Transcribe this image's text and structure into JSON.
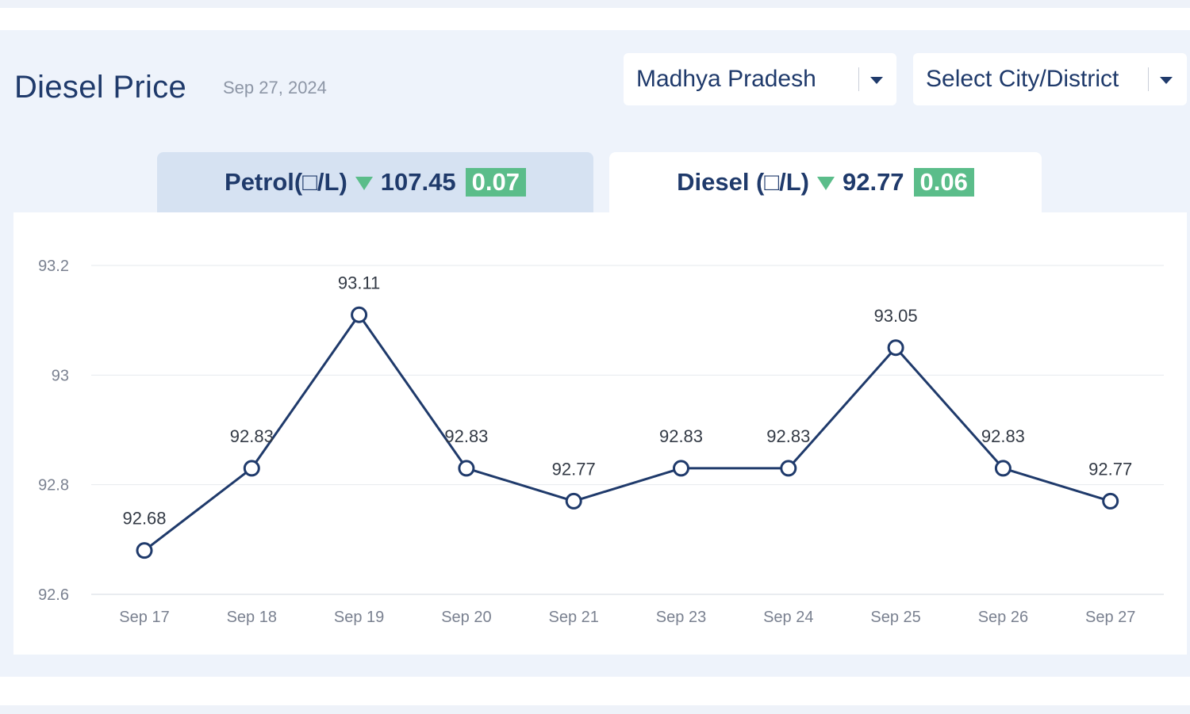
{
  "header": {
    "title": "Diesel Price",
    "date": "Sep 27, 2024"
  },
  "filters": {
    "state": {
      "selected": "Madhya Pradesh"
    },
    "city": {
      "selected": "Select City/District"
    }
  },
  "tabs": [
    {
      "label": "Petrol(□/L)",
      "price": "107.45",
      "change": "0.07",
      "trend": "down",
      "active": false
    },
    {
      "label": "Diesel (□/L)",
      "price": "92.77",
      "change": "0.06",
      "trend": "down",
      "active": true
    }
  ],
  "colors": {
    "line": "#1f3a6b",
    "badge": "#5bbd8a",
    "active_tab": "#ffffff",
    "inactive_tab": "#d6e2f2"
  },
  "chart_data": {
    "type": "line",
    "categories": [
      "Sep 17",
      "Sep 18",
      "Sep 19",
      "Sep 20",
      "Sep 21",
      "Sep 23",
      "Sep 24",
      "Sep 25",
      "Sep 26",
      "Sep 27"
    ],
    "series": [
      {
        "values": [
          92.68,
          92.83,
          93.11,
          92.83,
          92.77,
          92.83,
          92.83,
          93.05,
          92.83,
          92.77
        ]
      }
    ],
    "data_labels": [
      "92.68",
      "92.83",
      "93.11",
      "92.83",
      "92.77",
      "92.83",
      "92.83",
      "93.05",
      "92.83",
      "92.77"
    ],
    "y_ticks": [
      "93.2",
      "93",
      "92.8",
      "92.6"
    ],
    "y_tick_values": [
      93.2,
      93.0,
      92.8,
      92.6
    ],
    "ylim": [
      92.6,
      93.2
    ],
    "grid": true,
    "markers": "hollow-circle"
  }
}
